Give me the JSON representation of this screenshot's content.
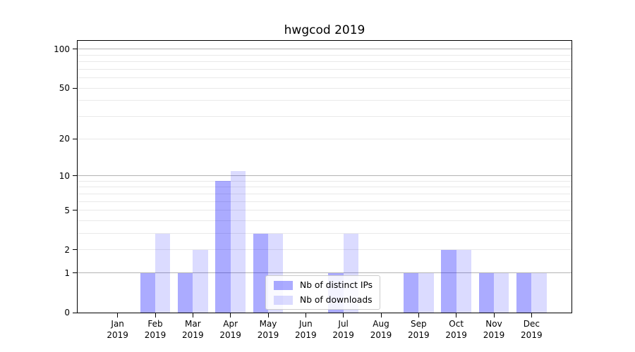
{
  "chart_data": {
    "type": "bar",
    "title": "hwgcod 2019",
    "categories": [
      "Jan",
      "Feb",
      "Mar",
      "Apr",
      "May",
      "Jun",
      "Jul",
      "Aug",
      "Sep",
      "Oct",
      "Nov",
      "Dec"
    ],
    "category_year": "2019",
    "series": [
      {
        "name": "Nb of distinct IPs",
        "color": "rgba(0,0,255,0.33)",
        "values": [
          0,
          1,
          1,
          9,
          3,
          0,
          1,
          0,
          1,
          2,
          1,
          1
        ]
      },
      {
        "name": "Nb of downloads",
        "color": "rgba(0,0,255,0.14)",
        "values": [
          0,
          3,
          2,
          11,
          3,
          0,
          3,
          0,
          1,
          2,
          1,
          1
        ]
      }
    ],
    "xlabel": "",
    "ylabel": "",
    "yscale": "log1p",
    "ylim": [
      0,
      116
    ],
    "yticks": [
      0,
      1,
      2,
      5,
      10,
      20,
      50,
      100
    ],
    "major_gridlines": [
      1,
      10,
      100
    ],
    "minor_gridlines": [
      2,
      3,
      4,
      5,
      6,
      7,
      8,
      9,
      20,
      30,
      40,
      50,
      60,
      70,
      80,
      90
    ],
    "grid": true,
    "legend_position": "lower center",
    "colors": {
      "grid_major": "#b3b3b3",
      "grid_minor": "#e9e9e9",
      "axis": "#000000",
      "background": "#ffffff"
    }
  }
}
